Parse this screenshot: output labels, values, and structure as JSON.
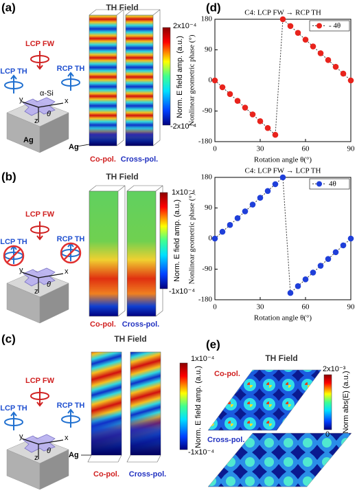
{
  "panels": {
    "a": {
      "label": "(a)",
      "title": "TH Field",
      "lcp_fw": "LCP FW",
      "lcp_th": "LCP TH",
      "rcp_th": "RCP TH",
      "material": "α-Si",
      "substrate": "Ag",
      "axis_x": "x",
      "axis_y": "y",
      "axis_z": "z",
      "angle": "θ",
      "ag_label": "Ag",
      "co_pol": "Co-pol.",
      "cross_pol": "Cross-pol.",
      "colorbar_max": "2x10⁻⁴",
      "colorbar_min": "-2x10⁻⁴",
      "colorbar_label": "Norm. E field amp. (a.u.)"
    },
    "b": {
      "label": "(b)",
      "title": "TH Field",
      "lcp_fw": "LCP FW",
      "lcp_th": "LCP TH",
      "rcp_th": "RCP TH",
      "axis_x": "x",
      "axis_y": "y",
      "axis_z": "z",
      "angle": "θ",
      "co_pol": "Co-pol.",
      "cross_pol": "Cross-pol.",
      "colorbar_max": "1x10⁻⁴",
      "colorbar_min": "-1x10⁻⁴",
      "colorbar_label": "Norm. E field amp. (a.u.)"
    },
    "c": {
      "label": "(c)",
      "title": "TH Field",
      "lcp_fw": "LCP FW",
      "lcp_th": "LCP TH",
      "rcp_th": "RCP TH",
      "axis_x": "x",
      "axis_y": "y",
      "axis_z": "z",
      "angle": "θ",
      "ag_label": "Ag",
      "co_pol": "Co-pol.",
      "cross_pol": "Cross-pol.",
      "colorbar_max": "1x10⁻⁴",
      "colorbar_min": "-1x10⁻⁴",
      "colorbar_label": "Norm. E field amp. (a.u.)"
    },
    "d": {
      "label": "(d)"
    },
    "e": {
      "label": "(e)",
      "title": "TH Field",
      "co_pol": "Co-pol.",
      "cross_pol": "Cross-pol.",
      "colorbar_max": "2x10⁻³",
      "colorbar_min": "0",
      "colorbar_label": "Norm abs(E) (a.u.)"
    }
  },
  "chart_data": [
    {
      "type": "scatter",
      "title": "C4: LCP FW → RCP TH",
      "xlabel": "Rotation angle θ(°)",
      "ylabel": "Nonlinear geometric phase (°)",
      "x": [
        0,
        5,
        10,
        15,
        20,
        25,
        30,
        35,
        40,
        45,
        50,
        55,
        60,
        65,
        70,
        75,
        80,
        85,
        90
      ],
      "series": [
        {
          "name": "- 4θ",
          "color": "#e8231c",
          "values": [
            0,
            -20,
            -40,
            -60,
            -80,
            -100,
            -120,
            -140,
            -160,
            180,
            160,
            140,
            120,
            100,
            80,
            60,
            40,
            20,
            0
          ]
        }
      ],
      "xlim": [
        0,
        90
      ],
      "ylim": [
        -180,
        180
      ],
      "xticks": [
        0,
        30,
        60,
        90
      ],
      "yticks": [
        -180,
        -90,
        0,
        90,
        180
      ],
      "legend": "upper right"
    },
    {
      "type": "scatter",
      "title": "C4: LCP FW → LCP TH",
      "xlabel": "Rotation angle θ(°)",
      "ylabel": "Nonlinear geometric phase (°)",
      "x": [
        0,
        5,
        10,
        15,
        20,
        25,
        30,
        35,
        40,
        45,
        50,
        55,
        60,
        65,
        70,
        75,
        80,
        85,
        90
      ],
      "series": [
        {
          "name": "4θ",
          "color": "#1f3fd9",
          "values": [
            0,
            20,
            40,
            60,
            80,
            100,
            120,
            140,
            160,
            180,
            -160,
            -140,
            -120,
            -100,
            -80,
            -60,
            -40,
            -20,
            0
          ]
        }
      ],
      "xlim": [
        0,
        90
      ],
      "ylim": [
        -180,
        180
      ],
      "xticks": [
        0,
        30,
        60,
        90
      ],
      "yticks": [
        -180,
        -90,
        0,
        90,
        180
      ],
      "legend": "upper right"
    }
  ]
}
